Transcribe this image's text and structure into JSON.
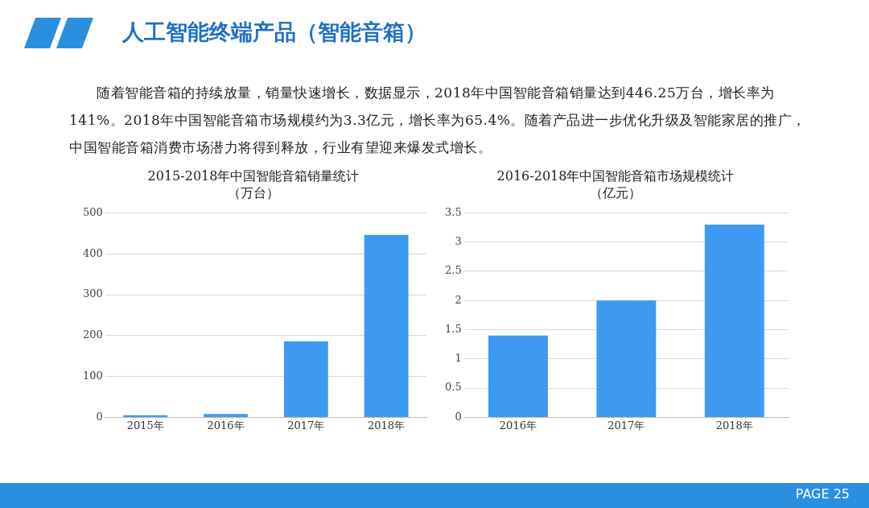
{
  "chart_data": [
    {
      "type": "other",
      "title": "人工智能终端产品（智能音箱）",
      "annotations": [
        "随着智能音箱的持续放量，销量快速增长，数据显示，2018年中国智能音箱销量达到446.25万台，增长率为141%。2018年中国智能音箱市场规模约为3.3亿元，增长率为65.4%。随着产品进一步优化升级及智能家居的推广，中国智能音箱消费市场潜力将得到释放，行业有望迎来爆发式增长。",
        "PAGE  25"
      ]
    },
    {
      "type": "bar",
      "title": "2015-2018年中国智能音箱销量统计",
      "subtitle": "（万台）",
      "categories": [
        "2015年",
        "2016年",
        "2017年",
        "2018年"
      ],
      "values": [
        5,
        8,
        186,
        446.25
      ],
      "color": "#3d9af0",
      "ylim": [
        0,
        500
      ],
      "yticks": [
        0,
        100,
        200,
        300,
        400,
        500
      ],
      "grid": "y",
      "legend": false
    },
    {
      "type": "bar",
      "title": "2016-2018年中国智能音箱市场规模统计",
      "subtitle": "（亿元）",
      "categories": [
        "2016年",
        "2017年",
        "2018年"
      ],
      "values": [
        1.4,
        2,
        3.3
      ],
      "color": "#3d9af0",
      "ylim": [
        0,
        3.5
      ],
      "yticks": [
        0,
        {
          "value": 0.5,
          "label": "0.5"
        },
        1,
        {
          "value": 1.5,
          "label": "1.5"
        },
        2,
        {
          "value": 2.5,
          "label": "2.5"
        },
        3,
        {
          "value": 3.5,
          "label": "3.5"
        }
      ],
      "grid": "y",
      "legend": false
    }
  ]
}
